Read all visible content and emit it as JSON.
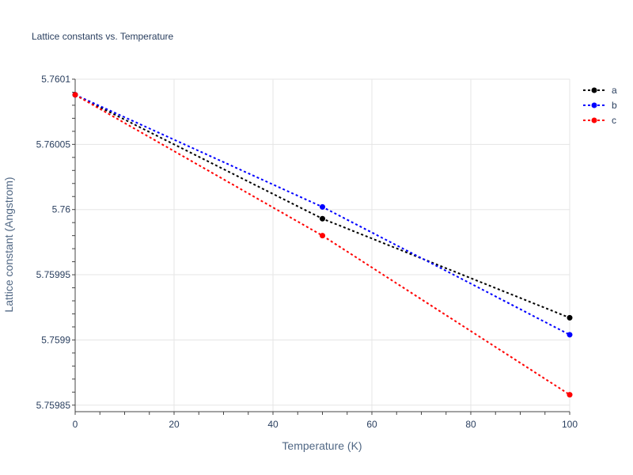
{
  "chart_data": {
    "type": "line",
    "title": "Lattice constants vs. Temperature",
    "xlabel": "Temperature (K)",
    "ylabel": "Lattice constant (Angstrom)",
    "xlim": [
      0,
      100
    ],
    "ylim": [
      5.759845,
      5.7601
    ],
    "x_ticks": [
      0,
      20,
      40,
      60,
      80,
      100
    ],
    "x_tick_labels": [
      "0",
      "20",
      "40",
      "60",
      "80",
      "100"
    ],
    "y_ticks": [
      5.75985,
      5.7599,
      5.75995,
      5.76,
      5.76005,
      5.7601
    ],
    "y_tick_labels": [
      "5.75985",
      "5.7599",
      "5.75995",
      "5.76",
      "5.76005",
      "5.7601"
    ],
    "grid": true,
    "legend_position": "top-right",
    "x": [
      0,
      50,
      100
    ],
    "series": [
      {
        "name": "a",
        "color": "#000000",
        "values": [
          5.760088,
          5.759993,
          5.759917
        ]
      },
      {
        "name": "b",
        "color": "#0000ff",
        "values": [
          5.760088,
          5.760002,
          5.759904
        ]
      },
      {
        "name": "c",
        "color": "#ff0000",
        "values": [
          5.760088,
          5.75998,
          5.759858
        ]
      }
    ]
  }
}
